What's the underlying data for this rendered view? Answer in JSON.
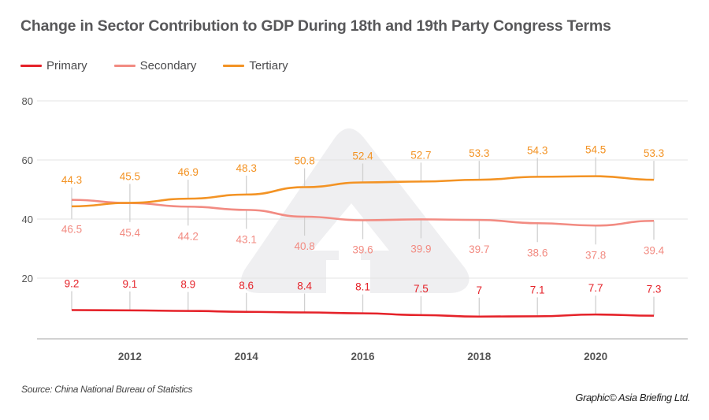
{
  "title": "Change in Sector Contribution to GDP During 18th and 19th Party Congress Terms",
  "source": "Source: China National Bureau of Statistics",
  "credit": "Graphic© Asia Briefing Ltd.",
  "watermark_icon": "asia-briefing-logo-icon",
  "legend": [
    {
      "name": "Primary",
      "color": "#e52229"
    },
    {
      "name": "Secondary",
      "color": "#f28b82"
    },
    {
      "name": "Tertiary",
      "color": "#f39324"
    }
  ],
  "chart_data": {
    "type": "line",
    "title": "Change in Sector Contribution to GDP During 18th and 19th Party Congress Terms",
    "xlabel": "",
    "ylabel": "",
    "x": [
      2011,
      2012,
      2013,
      2014,
      2015,
      2016,
      2017,
      2018,
      2019,
      2020,
      2021
    ],
    "x_tick_labels": [
      "2012",
      "2014",
      "2016",
      "2018",
      "2020"
    ],
    "x_tick_values": [
      2012,
      2014,
      2016,
      2018,
      2020
    ],
    "y_tick_labels": [
      "20",
      "40",
      "60",
      "80"
    ],
    "y_tick_values": [
      20,
      40,
      60,
      80
    ],
    "ylim": [
      0,
      80
    ],
    "grid": true,
    "legend_position": "top-left",
    "series": [
      {
        "name": "Primary",
        "color": "#e52229",
        "label_side": "above",
        "values": [
          9.2,
          9.1,
          8.9,
          8.6,
          8.4,
          8.1,
          7.5,
          7,
          7.1,
          7.7,
          7.3
        ],
        "labels": [
          "9.2",
          "9.1",
          "8.9",
          "8.6",
          "8.4",
          "8.1",
          "7.5",
          "7",
          "7.1",
          "7.7",
          "7.3"
        ]
      },
      {
        "name": "Secondary",
        "color": "#f28b82",
        "label_side": "below",
        "values": [
          46.5,
          45.4,
          44.2,
          43.1,
          40.8,
          39.6,
          39.9,
          39.7,
          38.6,
          37.8,
          39.4
        ],
        "labels": [
          "46.5",
          "45.4",
          "44.2",
          "43.1",
          "40.8",
          "39.6",
          "39.9",
          "39.7",
          "38.6",
          "37.8",
          "39.4"
        ]
      },
      {
        "name": "Tertiary",
        "color": "#f39324",
        "label_side": "above",
        "values": [
          44.3,
          45.5,
          46.9,
          48.3,
          50.8,
          52.4,
          52.7,
          53.3,
          54.3,
          54.5,
          53.3
        ],
        "labels": [
          "44.3",
          "45.5",
          "46.9",
          "48.3",
          "50.8",
          "52.4",
          "52.7",
          "53.3",
          "54.3",
          "54.5",
          "53.3"
        ]
      }
    ]
  }
}
